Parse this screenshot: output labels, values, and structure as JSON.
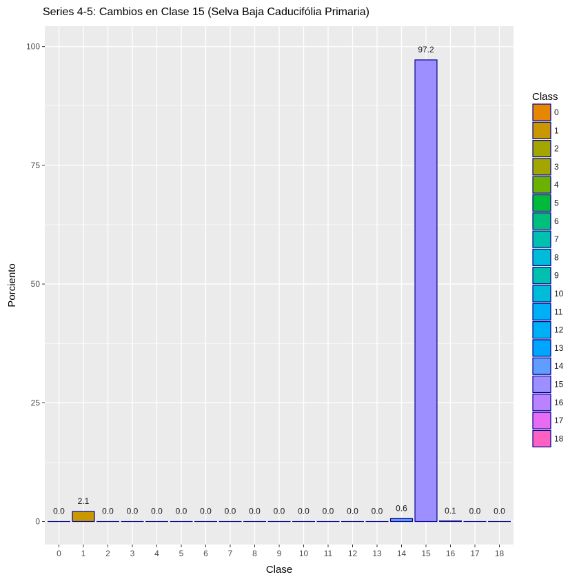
{
  "chart_data": {
    "type": "bar",
    "title": "Series 4-5: Cambios en Clase 15 (Selva Baja Caducifólia Primaria)",
    "xlabel": "Clase",
    "ylabel": "Porciento",
    "categories": [
      "0",
      "1",
      "2",
      "3",
      "4",
      "5",
      "6",
      "7",
      "8",
      "9",
      "10",
      "11",
      "12",
      "13",
      "14",
      "15",
      "16",
      "17",
      "18"
    ],
    "values": [
      0.0,
      2.1,
      0.0,
      0.0,
      0.0,
      0.0,
      0.0,
      0.0,
      0.0,
      0.0,
      0.0,
      0.0,
      0.0,
      0.0,
      0.6,
      97.2,
      0.1,
      0.0,
      0.0
    ],
    "data_labels": [
      "0.0",
      "2.1",
      "0.0",
      "0.0",
      "0.0",
      "0.0",
      "0.0",
      "0.0",
      "0.0",
      "0.0",
      "0.0",
      "0.0",
      "0.0",
      "0.0",
      "0.6",
      "97.2",
      "0.1",
      "0.0",
      "0.0"
    ],
    "ylim": [
      -4.86,
      104.3
    ],
    "yticks": [
      0,
      25,
      50,
      75,
      100
    ],
    "grid": true,
    "legend": {
      "title": "Class",
      "placement": "right",
      "entries": [
        "0",
        "1",
        "2",
        "3",
        "4",
        "5",
        "6",
        "7",
        "8",
        "9",
        "10",
        "11",
        "12",
        "13",
        "14",
        "15",
        "16",
        "17",
        "18"
      ]
    },
    "colors": [
      "#E58700",
      "#C99800",
      "#A3A500",
      "#A3A500",
      "#6BB100",
      "#00BA38",
      "#00BF7D",
      "#00C0AF",
      "#00BCD8",
      "#00C0AF",
      "#00BCD8",
      "#00B0F6",
      "#00B0F6",
      "#00A5FF",
      "#619CFF",
      "#9D8FFF",
      "#B983FF",
      "#E76BF3",
      "#FF61C3"
    ],
    "bar_outline_color": "#00008B",
    "panel_color": "#EBEBEB",
    "grid_color": "#FFFFFF"
  }
}
